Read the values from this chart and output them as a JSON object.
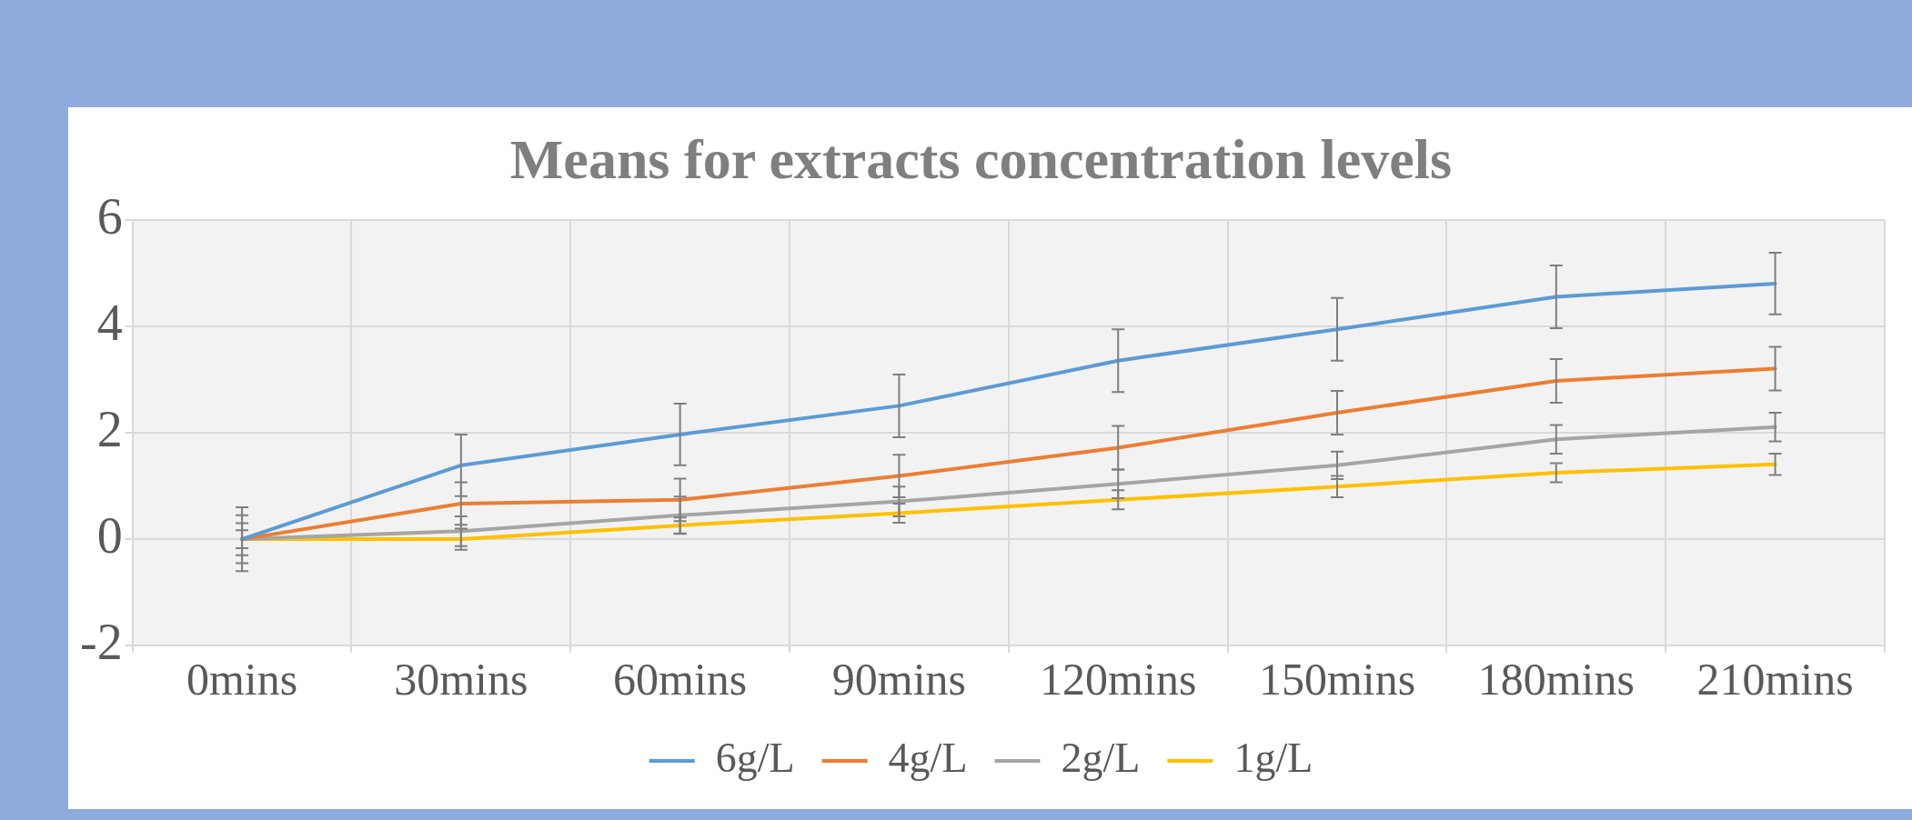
{
  "chart_data": {
    "type": "line",
    "title": "Means for extracts concentration levels",
    "categories": [
      "0mins",
      "30mins",
      "60mins",
      "90mins",
      "120mins",
      "150mins",
      "180mins",
      "210mins"
    ],
    "series": [
      {
        "name": "6g/L",
        "color": "#5b9bd5",
        "values": [
          0,
          1.39,
          1.97,
          2.51,
          3.36,
          3.95,
          4.56,
          4.81
        ],
        "errors": [
          0.6,
          0.58,
          0.58,
          0.59,
          0.59,
          0.59,
          0.59,
          0.58
        ]
      },
      {
        "name": "4g/L",
        "color": "#ed7d31",
        "values": [
          0,
          0.67,
          0.74,
          1.19,
          1.72,
          2.38,
          2.98,
          3.21
        ],
        "errors": [
          0.45,
          0.4,
          0.4,
          0.4,
          0.41,
          0.41,
          0.41,
          0.41
        ]
      },
      {
        "name": "2g/L",
        "color": "#a5a5a5",
        "values": [
          0,
          0.15,
          0.45,
          0.71,
          1.04,
          1.39,
          1.88,
          2.11
        ],
        "errors": [
          0.3,
          0.28,
          0.35,
          0.28,
          0.27,
          0.26,
          0.27,
          0.27
        ]
      },
      {
        "name": "1g/L",
        "color": "#ffc000",
        "values": [
          0,
          0,
          0.26,
          0.49,
          0.74,
          0.99,
          1.25,
          1.41
        ],
        "errors": [
          0.17,
          0.2,
          0.15,
          0.18,
          0.18,
          0.2,
          0.18,
          0.2
        ]
      }
    ],
    "ylim": [
      -2,
      6
    ],
    "yticks": [
      -2,
      0,
      2,
      4,
      6
    ],
    "grid": true,
    "legend": "bottom",
    "marker": "none",
    "line_style": "solid"
  }
}
